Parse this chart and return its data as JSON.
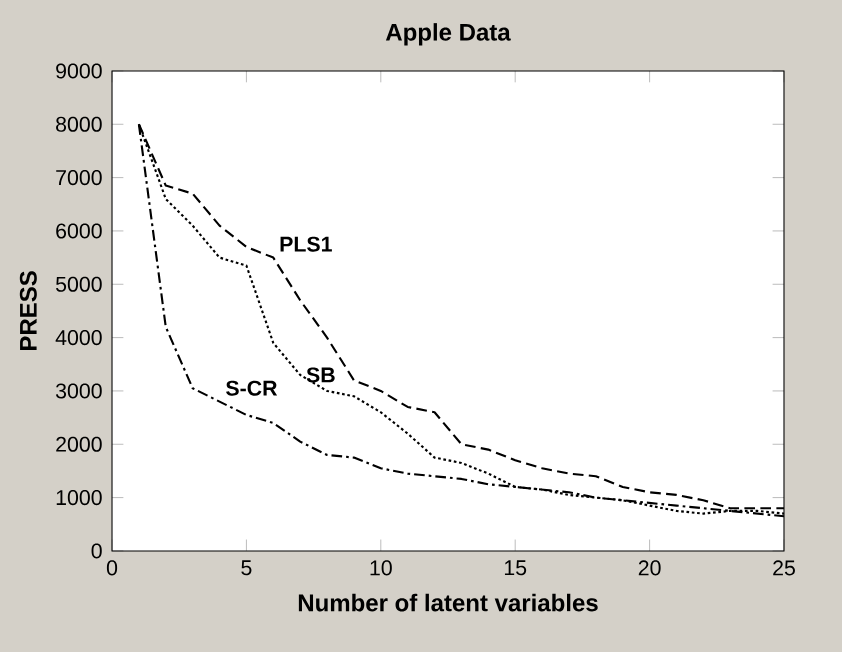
{
  "chart_data": {
    "type": "line",
    "title": "Apple Data",
    "xlabel": "Number of latent variables",
    "ylabel": "PRESS",
    "x": [
      1,
      2,
      3,
      4,
      5,
      6,
      7,
      8,
      9,
      10,
      11,
      12,
      13,
      14,
      15,
      16,
      17,
      18,
      19,
      20,
      21,
      22,
      23,
      24,
      25
    ],
    "series": [
      {
        "name": "PLS1",
        "color": "#000000",
        "line_style": "dashed",
        "values": [
          8000,
          6850,
          6700,
          6100,
          5700,
          5500,
          4700,
          4000,
          3200,
          3000,
          2700,
          2600,
          2000,
          1900,
          1700,
          1550,
          1450,
          1400,
          1200,
          1100,
          1050,
          950,
          800,
          800,
          800
        ]
      },
      {
        "name": "SB",
        "color": "#000000",
        "line_style": "dotted",
        "values": [
          8000,
          6600,
          6100,
          5500,
          5350,
          3900,
          3300,
          3000,
          2900,
          2600,
          2200,
          1750,
          1650,
          1450,
          1200,
          1150,
          1050,
          1000,
          950,
          850,
          750,
          700,
          750,
          750,
          700
        ]
      },
      {
        "name": "S-CR",
        "color": "#000000",
        "line_style": "dashdot",
        "values": [
          8000,
          4200,
          3050,
          2800,
          2550,
          2400,
          2050,
          1800,
          1750,
          1550,
          1450,
          1400,
          1350,
          1250,
          1200,
          1150,
          1100,
          1000,
          950,
          900,
          850,
          800,
          750,
          700,
          650
        ]
      }
    ],
    "xlim": [
      0,
      25
    ],
    "xticks": [
      0,
      5,
      10,
      15,
      20,
      25
    ],
    "ylim": [
      0,
      9000
    ],
    "yticks": [
      0,
      1000,
      2000,
      3000,
      4000,
      5000,
      6000,
      7000,
      8000,
      9000
    ],
    "grid": false,
    "legend": false,
    "marker": "none"
  }
}
